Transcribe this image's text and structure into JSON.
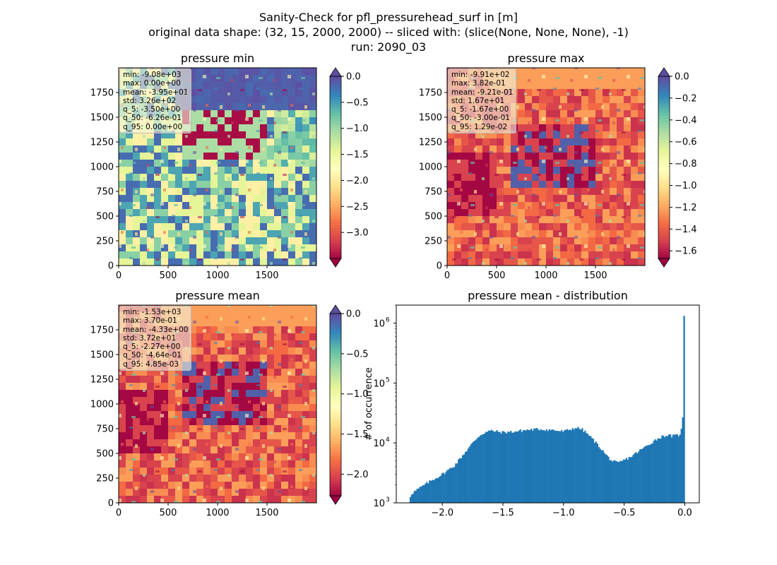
{
  "figure": {
    "title_line1": "Sanity-Check for pfl_pressurehead_surf in [m]",
    "title_line2": "original data shape: (32, 15, 2000, 2000) -- sliced with: (slice(None, None, None), -1)",
    "title_line3": "run: 2090_03"
  },
  "colormap_stops": [
    "#9e0142",
    "#d53e4f",
    "#f46d43",
    "#fdae61",
    "#fee08b",
    "#ffffbf",
    "#e6f598",
    "#abdda4",
    "#66c2a5",
    "#3288bd",
    "#5e4fa2"
  ],
  "map_axes": {
    "x_ticks": [
      0,
      500,
      1000,
      1500
    ],
    "y_ticks": [
      0,
      250,
      500,
      750,
      1000,
      1250,
      1500,
      1750
    ]
  },
  "panels": [
    {
      "title": "pressure min",
      "stats_lines": [
        "min: -9.08e+03",
        "max: 0.00e+00",
        "mean: -3.95e+01",
        "std: 3.26e+02",
        "q_5: -3.50e+00",
        "q_50: -6.26e-01",
        "q_95: 0.00e+00"
      ],
      "colorbar": {
        "vmin": -3.5,
        "vmax": 0.0,
        "ticks": [
          0.0,
          -0.5,
          -1.0,
          -1.5,
          -2.0,
          -2.5,
          -3.0
        ],
        "extend_top_color": "#5e4fa2"
      }
    },
    {
      "title": "pressure max",
      "stats_lines": [
        "min: -9.91e+02",
        "max: 3.82e-01",
        "mean: -9.21e-01",
        "std: 1.67e+01",
        "q_5: -1.67e+00",
        "q_50: -3.00e-01",
        "q_95: 1.29e-02"
      ],
      "colorbar": {
        "vmin": -1.67,
        "vmax": 0.0,
        "ticks": [
          0.0,
          -0.2,
          -0.4,
          -0.6,
          -0.8,
          -1.0,
          -1.2,
          -1.4,
          -1.6
        ],
        "extend_top_color": "#5e4fa2"
      }
    },
    {
      "title": "pressure mean",
      "stats_lines": [
        "min: -1.53e+03",
        "max: 3.70e-01",
        "mean: -4.33e+00",
        "std: 3.72e+01",
        "q_5: -2.27e+00",
        "q_50: -4.64e-01",
        "q_95: 4.85e-03"
      ],
      "colorbar": {
        "vmin": -2.27,
        "vmax": 0.0,
        "ticks": [
          0.0,
          -0.5,
          -1.0,
          -1.5,
          -2.0
        ],
        "extend_top_color": "#5e4fa2"
      }
    }
  ],
  "chart_data": {
    "type": "bar",
    "title": "pressure mean - distribution",
    "xlabel": "",
    "ylabel": "# of occurrence",
    "yscale": "log",
    "xlim": [
      -2.38,
      0.12
    ],
    "ylim": [
      1000,
      2000000
    ],
    "x_ticks": [
      -2.0,
      -1.5,
      -1.0,
      -0.5,
      0.0
    ],
    "x_tick_labels": [
      "−2.0",
      "−1.5",
      "−1.0",
      "−0.5",
      "0.0"
    ],
    "y_ticks": [
      1000,
      10000,
      100000,
      1000000
    ],
    "y_tick_labels": [
      "10",
      "10",
      "10",
      "10"
    ],
    "y_tick_exponents": [
      "3",
      "4",
      "5",
      "6"
    ],
    "bar_color": "#1f77b4",
    "bins": {
      "start": -2.27,
      "end": 0.0,
      "count": 200
    },
    "profile_x": [
      -2.27,
      -2.26,
      -2.2,
      -2.1,
      -2.0,
      -1.9,
      -1.8,
      -1.75,
      -1.7,
      -1.65,
      -1.6,
      -1.5,
      -1.4,
      -1.3,
      -1.2,
      -1.1,
      -1.0,
      -0.9,
      -0.85,
      -0.8,
      -0.75,
      -0.7,
      -0.65,
      -0.6,
      -0.55,
      -0.5,
      -0.45,
      -0.4,
      -0.35,
      -0.3,
      -0.25,
      -0.2,
      -0.15,
      -0.1,
      -0.05,
      -0.03,
      -0.015,
      0.0
    ],
    "profile_y": [
      1150,
      1400,
      1700,
      2300,
      3000,
      4200,
      7500,
      10000,
      13000,
      15000,
      16000,
      15000,
      15500,
      16500,
      17000,
      16500,
      15500,
      18000,
      17000,
      14000,
      11000,
      8500,
      6300,
      5000,
      4600,
      5200,
      5800,
      6800,
      8000,
      9300,
      11000,
      12500,
      13500,
      13000,
      13500,
      15500,
      28000,
      1350000
    ]
  }
}
